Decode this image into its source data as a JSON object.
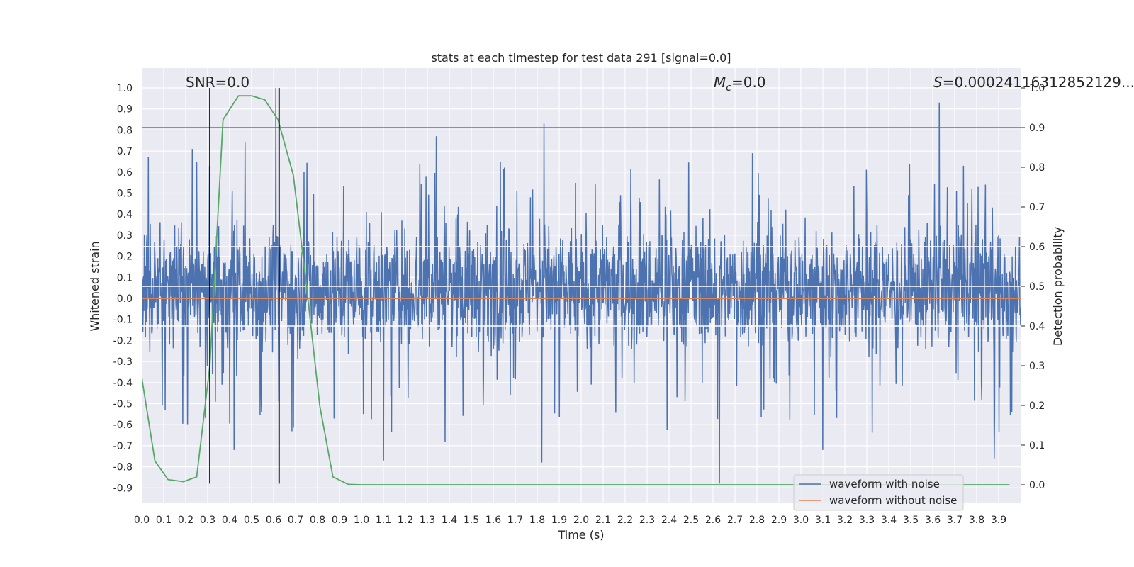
{
  "chart_data": {
    "type": "line",
    "title": "stats at each timestep for test data 291 [signal=0.0]",
    "xlabel": "Time (s)",
    "ylabel": "Whitened strain",
    "y2label": "Detection probability",
    "xlim": [
      0.0,
      4.0
    ],
    "ylim": [
      -0.97,
      1.09
    ],
    "y2lim": [
      -0.05,
      1.05
    ],
    "xticks": [
      "0.0",
      "0.1",
      "0.2",
      "0.3",
      "0.4",
      "0.5",
      "0.6",
      "0.7",
      "0.8",
      "0.9",
      "1.0",
      "1.1",
      "1.2",
      "1.3",
      "1.4",
      "1.5",
      "1.6",
      "1.7",
      "1.8",
      "1.9",
      "2.0",
      "2.1",
      "2.2",
      "2.3",
      "2.4",
      "2.5",
      "2.6",
      "2.7",
      "2.8",
      "2.9",
      "3.0",
      "3.1",
      "3.2",
      "3.3",
      "3.4",
      "3.5",
      "3.6",
      "3.7",
      "3.8",
      "3.9"
    ],
    "yticks": [
      "1.0",
      "0.9",
      "0.8",
      "0.7",
      "0.6",
      "0.5",
      "0.4",
      "0.3",
      "0.2",
      "0.1",
      "0.0",
      "-0.1",
      "-0.2",
      "-0.3",
      "-0.4",
      "-0.5",
      "-0.6",
      "-0.7",
      "-0.8",
      "-0.9"
    ],
    "y2ticks": [
      "1.0",
      "0.9",
      "0.8",
      "0.7",
      "0.6",
      "0.5",
      "0.4",
      "0.3",
      "0.2",
      "0.1",
      "0.0"
    ],
    "annotations": {
      "snr": "SNR=0.0",
      "mc_symbol": "M",
      "mc_sub": "c",
      "mc_value": "=0.0",
      "s_symbol": "S",
      "s_value": "=0.00024116312852129..."
    },
    "legend": {
      "placement": "lower-right",
      "entries": [
        "waveform with noise",
        "waveform without noise"
      ]
    },
    "grid": true,
    "series": [
      {
        "name": "waveform with noise",
        "color": "#4c72b0",
        "axis": "left",
        "kind": "noise",
        "x_range": [
          0.0,
          4.0
        ],
        "typical_range": [
          -0.32,
          0.42
        ],
        "peaks": [
          {
            "x": 0.03,
            "y": 0.67
          },
          {
            "x": 0.23,
            "y": 0.71
          },
          {
            "x": 0.47,
            "y": 0.74
          },
          {
            "x": 0.61,
            "y": 1.0
          },
          {
            "x": 1.34,
            "y": 0.77
          },
          {
            "x": 1.83,
            "y": 0.83
          },
          {
            "x": 2.78,
            "y": 0.69
          },
          {
            "x": 3.63,
            "y": 0.93
          },
          {
            "x": 3.74,
            "y": 0.63
          }
        ],
        "troughs": [
          {
            "x": 0.42,
            "y": -0.72
          },
          {
            "x": 1.1,
            "y": -0.77
          },
          {
            "x": 1.38,
            "y": -0.68
          },
          {
            "x": 1.82,
            "y": -0.78
          },
          {
            "x": 2.63,
            "y": -0.88
          },
          {
            "x": 3.1,
            "y": -0.72
          },
          {
            "x": 3.88,
            "y": -0.76
          }
        ]
      },
      {
        "name": "waveform without noise",
        "color": "#dd8452",
        "axis": "left",
        "x": [
          0.0,
          4.0
        ],
        "y": [
          0.0,
          0.0
        ]
      },
      {
        "color": "#55a868",
        "axis": "right",
        "x": [
          0.0,
          0.06,
          0.12,
          0.19,
          0.25,
          0.31,
          0.37,
          0.44,
          0.5,
          0.56,
          0.62,
          0.69,
          0.75,
          0.81,
          0.87,
          0.94,
          1.0,
          2.0,
          3.0,
          3.95
        ],
        "y": [
          0.27,
          0.06,
          0.013,
          0.008,
          0.02,
          0.3,
          0.92,
          0.98,
          0.98,
          0.97,
          0.92,
          0.78,
          0.5,
          0.2,
          0.02,
          0.001,
          0.0,
          0.0,
          0.0,
          0.0
        ]
      }
    ],
    "threshold_lines": {
      "red": {
        "axis": "right",
        "value": 0.9,
        "color": "#c44e52"
      },
      "white": {
        "axis": "right",
        "values": [
          0.6,
          0.5,
          0.4
        ],
        "color": "#ffffff"
      }
    },
    "vlines": {
      "x": [
        0.31,
        0.625
      ],
      "y_from": -0.88,
      "y_to": 1.0,
      "color": "#000000"
    }
  }
}
